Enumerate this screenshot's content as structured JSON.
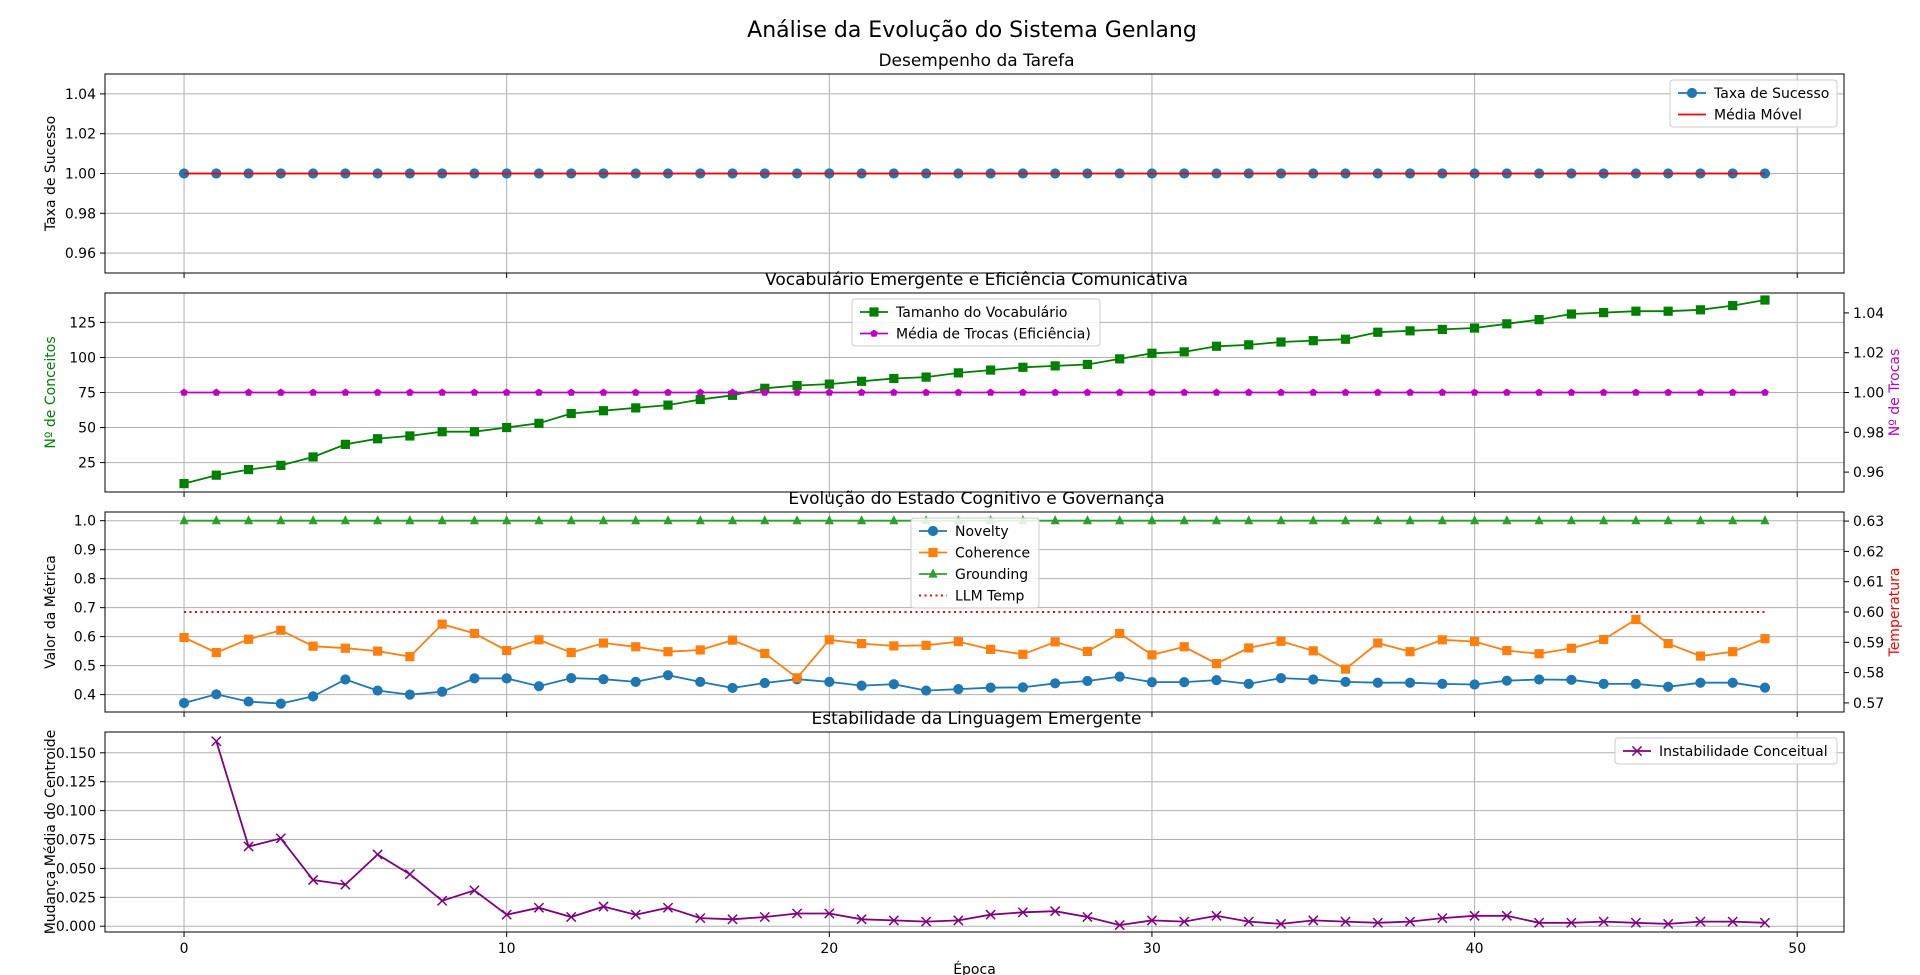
{
  "figure_title": "Análise da Evolução do Sistema Genlang",
  "shared_xlabel": "Época",
  "x_ticks": [
    0,
    10,
    20,
    30,
    40,
    50
  ],
  "colors": {
    "success": "#1f77b4",
    "moving_avg": "#ff0000",
    "vocab": "#008000",
    "exchanges": "#bf00bf",
    "novelty": "#1f77b4",
    "coherence": "#ff7f0e",
    "grounding": "#2ca02c",
    "temp": "#ff0000",
    "instability": "#800080"
  },
  "chart_data": [
    {
      "type": "line",
      "title": "Desempenho da Tarefa",
      "xlabel": "",
      "ylabel": "Taxa de Sucesso",
      "xlim": [
        -2.45,
        51.45
      ],
      "ylim": [
        0.95,
        1.05
      ],
      "y_ticks": [
        0.96,
        0.98,
        1.0,
        1.02,
        1.04
      ],
      "grid": true,
      "legend": "top-right",
      "x": [
        0,
        1,
        2,
        3,
        4,
        5,
        6,
        7,
        8,
        9,
        10,
        11,
        12,
        13,
        14,
        15,
        16,
        17,
        18,
        19,
        20,
        21,
        22,
        23,
        24,
        25,
        26,
        27,
        28,
        29,
        30,
        31,
        32,
        33,
        34,
        35,
        36,
        37,
        38,
        39,
        40,
        41,
        42,
        43,
        44,
        45,
        46,
        47,
        48,
        49
      ],
      "series": [
        {
          "name": "Taxa de Sucesso",
          "marker": "circle",
          "values": [
            1,
            1,
            1,
            1,
            1,
            1,
            1,
            1,
            1,
            1,
            1,
            1,
            1,
            1,
            1,
            1,
            1,
            1,
            1,
            1,
            1,
            1,
            1,
            1,
            1,
            1,
            1,
            1,
            1,
            1,
            1,
            1,
            1,
            1,
            1,
            1,
            1,
            1,
            1,
            1,
            1,
            1,
            1,
            1,
            1,
            1,
            1,
            1,
            1,
            1
          ]
        },
        {
          "name": "Média Móvel",
          "marker": "none",
          "values": [
            1,
            1,
            1,
            1,
            1,
            1,
            1,
            1,
            1,
            1,
            1,
            1,
            1,
            1,
            1,
            1,
            1,
            1,
            1,
            1,
            1,
            1,
            1,
            1,
            1,
            1,
            1,
            1,
            1,
            1,
            1,
            1,
            1,
            1,
            1,
            1,
            1,
            1,
            1,
            1,
            1,
            1,
            1,
            1,
            1,
            1,
            1,
            1,
            1,
            1
          ]
        }
      ]
    },
    {
      "type": "line",
      "title": "Vocabulário Emergente e Eficiência Comunicativa",
      "xlabel": "",
      "ylabel": "Nº de Conceitos",
      "ylabel_right": "Nº de Trocas",
      "xlim": [
        -2.45,
        51.45
      ],
      "ylim": [
        4,
        146
      ],
      "ylim_right": [
        0.95,
        1.05
      ],
      "y_ticks": [
        25,
        50,
        75,
        100,
        125
      ],
      "y_ticks_right": [
        0.96,
        0.98,
        1.0,
        1.02,
        1.04
      ],
      "grid": true,
      "legend": "top-center",
      "x": [
        0,
        1,
        2,
        3,
        4,
        5,
        6,
        7,
        8,
        9,
        10,
        11,
        12,
        13,
        14,
        15,
        16,
        17,
        18,
        19,
        20,
        21,
        22,
        23,
        24,
        25,
        26,
        27,
        28,
        29,
        30,
        31,
        32,
        33,
        34,
        35,
        36,
        37,
        38,
        39,
        40,
        41,
        42,
        43,
        44,
        45,
        46,
        47,
        48,
        49
      ],
      "series": [
        {
          "name": "Tamanho do Vocabulário",
          "marker": "square",
          "axis": "left",
          "values": [
            10,
            16,
            20,
            23,
            29,
            38,
            42,
            44,
            47,
            47,
            50,
            53,
            60,
            62,
            64,
            66,
            70,
            73,
            78,
            80,
            81,
            83,
            85,
            86,
            89,
            91,
            93,
            94,
            95,
            99,
            103,
            104,
            108,
            109,
            111,
            112,
            113,
            118,
            119,
            120,
            121,
            124,
            127,
            131,
            132,
            133,
            133,
            134,
            137,
            141
          ]
        },
        {
          "name": "Média de Trocas (Eficiência)",
          "marker": "pentagon",
          "axis": "right",
          "values": [
            1,
            1,
            1,
            1,
            1,
            1,
            1,
            1,
            1,
            1,
            1,
            1,
            1,
            1,
            1,
            1,
            1,
            1,
            1,
            1,
            1,
            1,
            1,
            1,
            1,
            1,
            1,
            1,
            1,
            1,
            1,
            1,
            1,
            1,
            1,
            1,
            1,
            1,
            1,
            1,
            1,
            1,
            1,
            1,
            1,
            1,
            1,
            1,
            1,
            1
          ]
        }
      ]
    },
    {
      "type": "line",
      "title": "Evolução do Estado Cognitivo e Governança",
      "xlabel": "",
      "ylabel": "Valor da Métrica",
      "ylabel_right": "Temperatura",
      "xlim": [
        -2.45,
        51.45
      ],
      "ylim": [
        0.34,
        1.03
      ],
      "ylim_right": [
        0.567,
        0.633
      ],
      "y_ticks": [
        0.4,
        0.5,
        0.6,
        0.7,
        0.8,
        0.9,
        1.0
      ],
      "y_ticks_right": [
        0.57,
        0.58,
        0.59,
        0.6,
        0.61,
        0.62,
        0.63
      ],
      "grid": true,
      "legend": "top-center",
      "x": [
        0,
        1,
        2,
        3,
        4,
        5,
        6,
        7,
        8,
        9,
        10,
        11,
        12,
        13,
        14,
        15,
        16,
        17,
        18,
        19,
        20,
        21,
        22,
        23,
        24,
        25,
        26,
        27,
        28,
        29,
        30,
        31,
        32,
        33,
        34,
        35,
        36,
        37,
        38,
        39,
        40,
        41,
        42,
        43,
        44,
        45,
        46,
        47,
        48,
        49
      ],
      "series": [
        {
          "name": "Novelty",
          "marker": "circle",
          "axis": "left",
          "values": [
            0.371,
            0.401,
            0.376,
            0.369,
            0.394,
            0.452,
            0.414,
            0.4,
            0.41,
            0.456,
            0.456,
            0.429,
            0.457,
            0.453,
            0.444,
            0.467,
            0.444,
            0.423,
            0.44,
            0.453,
            0.444,
            0.431,
            0.436,
            0.414,
            0.419,
            0.424,
            0.425,
            0.439,
            0.447,
            0.462,
            0.443,
            0.443,
            0.45,
            0.437,
            0.457,
            0.452,
            0.444,
            0.441,
            0.441,
            0.437,
            0.435,
            0.448,
            0.452,
            0.451,
            0.437,
            0.437,
            0.427,
            0.441,
            0.441,
            0.424
          ]
        },
        {
          "name": "Coherence",
          "marker": "square",
          "axis": "left",
          "values": [
            0.597,
            0.545,
            0.591,
            0.622,
            0.567,
            0.56,
            0.55,
            0.531,
            0.643,
            0.611,
            0.552,
            0.589,
            0.545,
            0.578,
            0.565,
            0.548,
            0.554,
            0.588,
            0.542,
            0.458,
            0.589,
            0.576,
            0.568,
            0.57,
            0.583,
            0.556,
            0.539,
            0.582,
            0.549,
            0.611,
            0.537,
            0.565,
            0.507,
            0.561,
            0.584,
            0.551,
            0.488,
            0.578,
            0.548,
            0.589,
            0.583,
            0.552,
            0.541,
            0.56,
            0.59,
            0.659,
            0.576,
            0.533,
            0.548,
            0.593
          ]
        },
        {
          "name": "Grounding",
          "marker": "triangle",
          "axis": "left",
          "values": [
            1,
            1,
            1,
            1,
            1,
            1,
            1,
            1,
            1,
            1,
            1,
            1,
            1,
            1,
            1,
            1,
            1,
            1,
            1,
            1,
            1,
            1,
            1,
            1,
            1,
            1,
            1,
            1,
            1,
            1,
            1,
            1,
            1,
            1,
            1,
            1,
            1,
            1,
            1,
            1,
            1,
            1,
            1,
            1,
            1,
            1,
            1,
            1,
            1,
            1
          ]
        },
        {
          "name": "LLM Temp",
          "marker": "none",
          "style": "dotted",
          "axis": "right",
          "values": [
            0.6,
            0.6,
            0.6,
            0.6,
            0.6,
            0.6,
            0.6,
            0.6,
            0.6,
            0.6,
            0.6,
            0.6,
            0.6,
            0.6,
            0.6,
            0.6,
            0.6,
            0.6,
            0.6,
            0.6,
            0.6,
            0.6,
            0.6,
            0.6,
            0.6,
            0.6,
            0.6,
            0.6,
            0.6,
            0.6,
            0.6,
            0.6,
            0.6,
            0.6,
            0.6,
            0.6,
            0.6,
            0.6,
            0.6,
            0.6,
            0.6,
            0.6,
            0.6,
            0.6,
            0.6,
            0.6,
            0.6,
            0.6,
            0.6,
            0.6
          ]
        }
      ]
    },
    {
      "type": "line",
      "title": "Estabilidade da Linguagem Emergente",
      "xlabel": "Época",
      "ylabel": "Mudança Média do Centroide",
      "xlim": [
        -2.45,
        51.45
      ],
      "ylim": [
        -0.005,
        0.168
      ],
      "y_ticks": [
        0.0,
        0.025,
        0.05,
        0.075,
        0.1,
        0.125,
        0.15
      ],
      "grid": true,
      "legend": "top-right",
      "x": [
        1,
        2,
        3,
        4,
        5,
        6,
        7,
        8,
        9,
        10,
        11,
        12,
        13,
        14,
        15,
        16,
        17,
        18,
        19,
        20,
        21,
        22,
        23,
        24,
        25,
        26,
        27,
        28,
        29,
        30,
        31,
        32,
        33,
        34,
        35,
        36,
        37,
        38,
        39,
        40,
        41,
        42,
        43,
        44,
        45,
        46,
        47,
        48,
        49
      ],
      "series": [
        {
          "name": "Instabilidade Conceitual",
          "marker": "x",
          "values": [
            0.16,
            0.069,
            0.076,
            0.04,
            0.036,
            0.062,
            0.045,
            0.022,
            0.031,
            0.01,
            0.016,
            0.008,
            0.017,
            0.01,
            0.016,
            0.007,
            0.006,
            0.008,
            0.011,
            0.011,
            0.006,
            0.005,
            0.004,
            0.005,
            0.01,
            0.012,
            0.013,
            0.008,
            0.001,
            0.005,
            0.004,
            0.009,
            0.004,
            0.002,
            0.005,
            0.004,
            0.003,
            0.004,
            0.007,
            0.009,
            0.009,
            0.003,
            0.003,
            0.004,
            0.003,
            0.002,
            0.004,
            0.004,
            0.003
          ]
        }
      ]
    }
  ]
}
